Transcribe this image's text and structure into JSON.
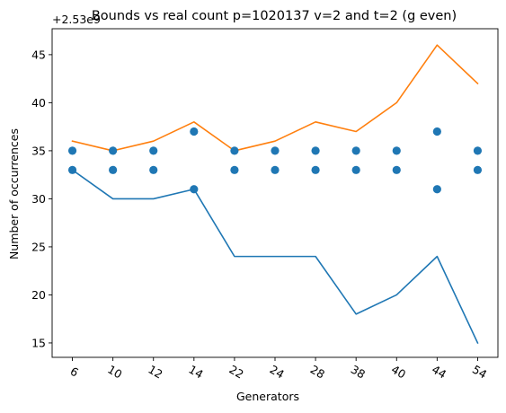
{
  "chart_data": {
    "type": "line",
    "title": "Bounds vs real count p=1020137 v=2 and t=2 (g even)",
    "xlabel": "Generators",
    "ylabel": "Number of occurrences",
    "offset_text": "+2.53e9",
    "categories": [
      "6",
      "10",
      "12",
      "14",
      "22",
      "24",
      "28",
      "38",
      "40",
      "44",
      "54"
    ],
    "ylim": [
      13.5,
      47.7
    ],
    "yticks": [
      15,
      20,
      25,
      30,
      35,
      40,
      45
    ],
    "grid": false,
    "legend": "none",
    "series": [
      {
        "kind": "line",
        "color": "#1f77b4",
        "values": [
          33,
          30,
          30,
          31,
          24,
          24,
          24,
          18,
          20,
          24,
          15
        ]
      },
      {
        "kind": "line",
        "color": "#ff7f0e",
        "values": [
          36,
          35,
          36,
          38,
          35,
          36,
          38,
          37,
          40,
          46,
          42
        ]
      },
      {
        "kind": "scatter",
        "color": "#1f77b4",
        "points": [
          [
            "6",
            35
          ],
          [
            "6",
            33
          ],
          [
            "10",
            35
          ],
          [
            "10",
            33
          ],
          [
            "12",
            35
          ],
          [
            "12",
            33
          ],
          [
            "14",
            37
          ],
          [
            "14",
            31
          ],
          [
            "22",
            35
          ],
          [
            "22",
            33
          ],
          [
            "24",
            35
          ],
          [
            "24",
            33
          ],
          [
            "28",
            35
          ],
          [
            "28",
            33
          ],
          [
            "38",
            35
          ],
          [
            "38",
            33
          ],
          [
            "40",
            35
          ],
          [
            "40",
            33
          ],
          [
            "44",
            37
          ],
          [
            "44",
            31
          ],
          [
            "54",
            35
          ],
          [
            "54",
            33
          ]
        ]
      }
    ]
  }
}
